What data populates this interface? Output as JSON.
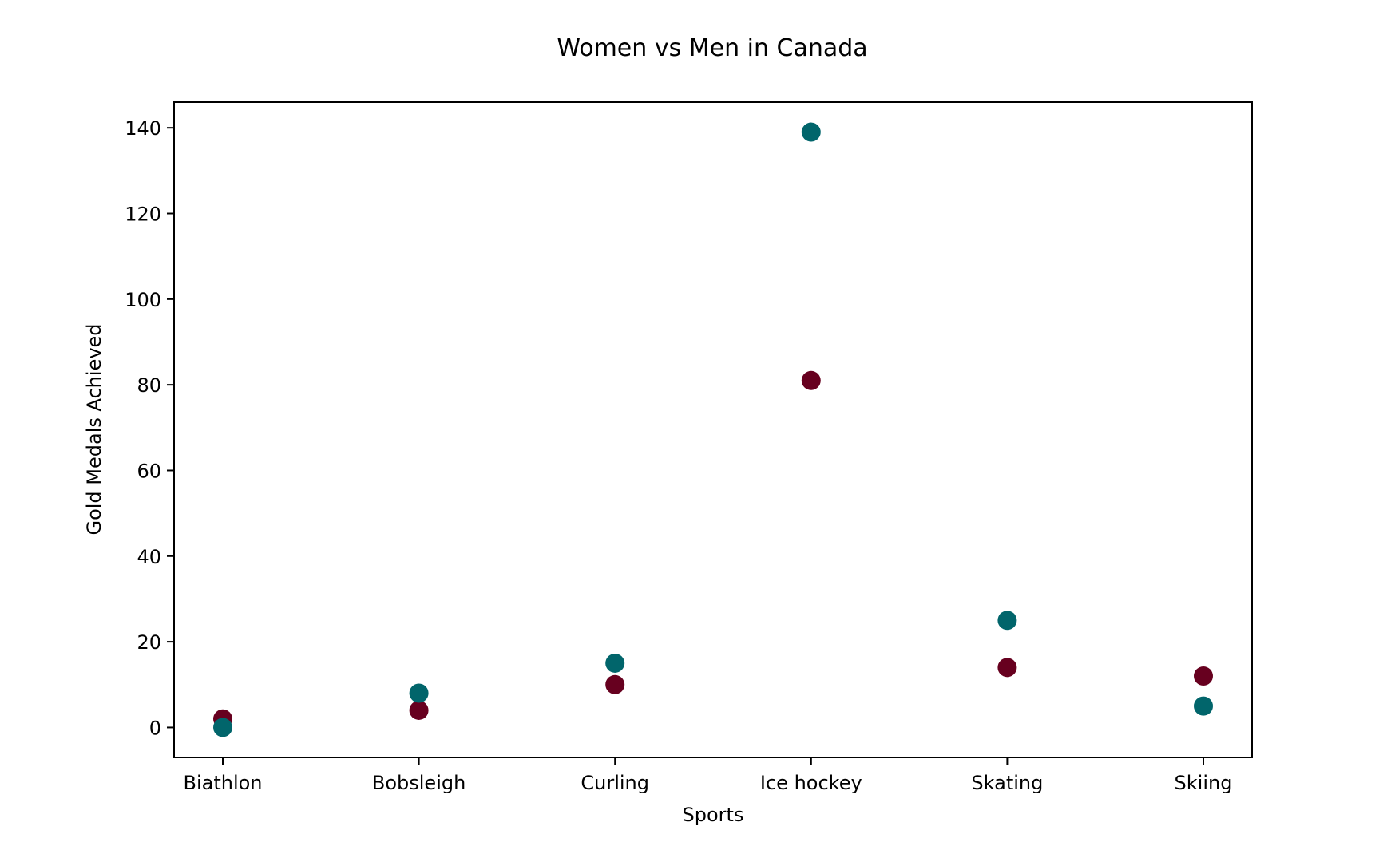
{
  "chart_data": {
    "type": "scatter",
    "title": "Women vs Men in Canada",
    "xlabel": "Sports",
    "ylabel": "Gold Medals Achieved",
    "categories": [
      "Biathlon",
      "Bobsleigh",
      "Curling",
      "Ice hockey",
      "Skating",
      "Skiing"
    ],
    "ylim": [
      -7,
      146
    ],
    "yticks": [
      0,
      20,
      40,
      60,
      80,
      100,
      120,
      140
    ],
    "grid": false,
    "series": [
      {
        "color": "#67001f",
        "values": [
          2,
          4,
          10,
          81,
          14,
          12
        ]
      },
      {
        "color": "#01656b",
        "values": [
          0,
          8,
          15,
          139,
          25,
          5
        ]
      }
    ]
  }
}
